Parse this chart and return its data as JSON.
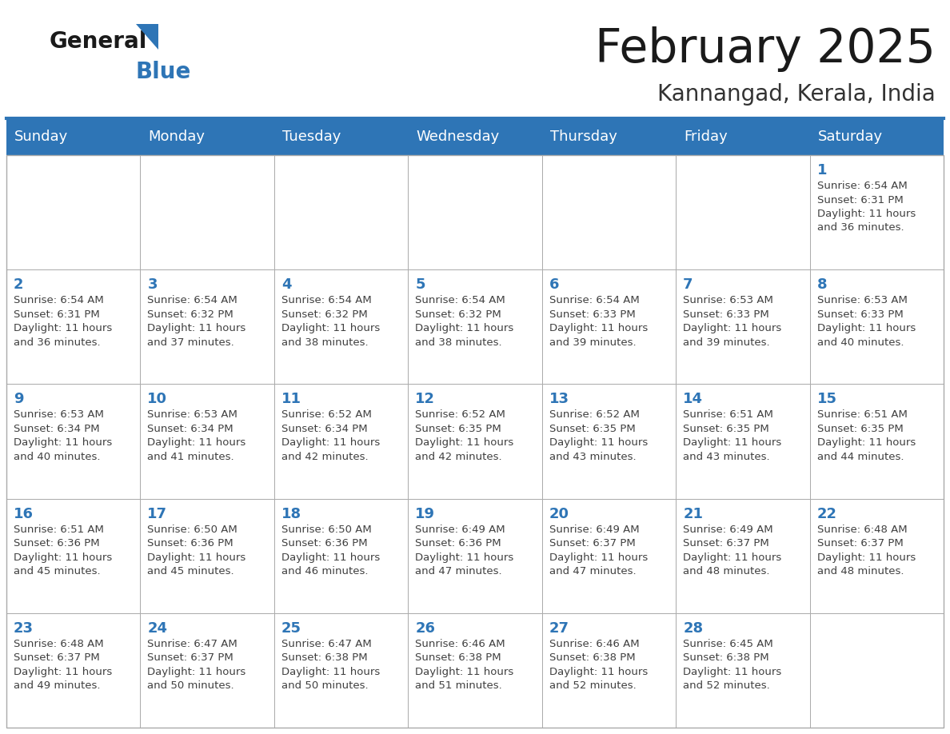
{
  "title": "February 2025",
  "subtitle": "Kannangad, Kerala, India",
  "header_color": "#2E75B6",
  "header_text_color": "#FFFFFF",
  "days_of_week": [
    "Sunday",
    "Monday",
    "Tuesday",
    "Wednesday",
    "Thursday",
    "Friday",
    "Saturday"
  ],
  "bg_color": "#FFFFFF",
  "cell_border_color": "#AAAAAA",
  "day_num_color": "#2E75B6",
  "info_text_color": "#404040",
  "logo_color_general": "#1a1a1a",
  "logo_color_blue": "#2E75B6",
  "calendar_data": [
    [
      null,
      null,
      null,
      null,
      null,
      null,
      {
        "day": 1,
        "sunrise": "6:54 AM",
        "sunset": "6:31 PM",
        "daylight_h": "11 hours",
        "daylight_m": "and 36 minutes."
      }
    ],
    [
      {
        "day": 2,
        "sunrise": "6:54 AM",
        "sunset": "6:31 PM",
        "daylight_h": "11 hours",
        "daylight_m": "and 36 minutes."
      },
      {
        "day": 3,
        "sunrise": "6:54 AM",
        "sunset": "6:32 PM",
        "daylight_h": "11 hours",
        "daylight_m": "and 37 minutes."
      },
      {
        "day": 4,
        "sunrise": "6:54 AM",
        "sunset": "6:32 PM",
        "daylight_h": "11 hours",
        "daylight_m": "and 38 minutes."
      },
      {
        "day": 5,
        "sunrise": "6:54 AM",
        "sunset": "6:32 PM",
        "daylight_h": "11 hours",
        "daylight_m": "and 38 minutes."
      },
      {
        "day": 6,
        "sunrise": "6:54 AM",
        "sunset": "6:33 PM",
        "daylight_h": "11 hours",
        "daylight_m": "and 39 minutes."
      },
      {
        "day": 7,
        "sunrise": "6:53 AM",
        "sunset": "6:33 PM",
        "daylight_h": "11 hours",
        "daylight_m": "and 39 minutes."
      },
      {
        "day": 8,
        "sunrise": "6:53 AM",
        "sunset": "6:33 PM",
        "daylight_h": "11 hours",
        "daylight_m": "and 40 minutes."
      }
    ],
    [
      {
        "day": 9,
        "sunrise": "6:53 AM",
        "sunset": "6:34 PM",
        "daylight_h": "11 hours",
        "daylight_m": "and 40 minutes."
      },
      {
        "day": 10,
        "sunrise": "6:53 AM",
        "sunset": "6:34 PM",
        "daylight_h": "11 hours",
        "daylight_m": "and 41 minutes."
      },
      {
        "day": 11,
        "sunrise": "6:52 AM",
        "sunset": "6:34 PM",
        "daylight_h": "11 hours",
        "daylight_m": "and 42 minutes."
      },
      {
        "day": 12,
        "sunrise": "6:52 AM",
        "sunset": "6:35 PM",
        "daylight_h": "11 hours",
        "daylight_m": "and 42 minutes."
      },
      {
        "day": 13,
        "sunrise": "6:52 AM",
        "sunset": "6:35 PM",
        "daylight_h": "11 hours",
        "daylight_m": "and 43 minutes."
      },
      {
        "day": 14,
        "sunrise": "6:51 AM",
        "sunset": "6:35 PM",
        "daylight_h": "11 hours",
        "daylight_m": "and 43 minutes."
      },
      {
        "day": 15,
        "sunrise": "6:51 AM",
        "sunset": "6:35 PM",
        "daylight_h": "11 hours",
        "daylight_m": "and 44 minutes."
      }
    ],
    [
      {
        "day": 16,
        "sunrise": "6:51 AM",
        "sunset": "6:36 PM",
        "daylight_h": "11 hours",
        "daylight_m": "and 45 minutes."
      },
      {
        "day": 17,
        "sunrise": "6:50 AM",
        "sunset": "6:36 PM",
        "daylight_h": "11 hours",
        "daylight_m": "and 45 minutes."
      },
      {
        "day": 18,
        "sunrise": "6:50 AM",
        "sunset": "6:36 PM",
        "daylight_h": "11 hours",
        "daylight_m": "and 46 minutes."
      },
      {
        "day": 19,
        "sunrise": "6:49 AM",
        "sunset": "6:36 PM",
        "daylight_h": "11 hours",
        "daylight_m": "and 47 minutes."
      },
      {
        "day": 20,
        "sunrise": "6:49 AM",
        "sunset": "6:37 PM",
        "daylight_h": "11 hours",
        "daylight_m": "and 47 minutes."
      },
      {
        "day": 21,
        "sunrise": "6:49 AM",
        "sunset": "6:37 PM",
        "daylight_h": "11 hours",
        "daylight_m": "and 48 minutes."
      },
      {
        "day": 22,
        "sunrise": "6:48 AM",
        "sunset": "6:37 PM",
        "daylight_h": "11 hours",
        "daylight_m": "and 48 minutes."
      }
    ],
    [
      {
        "day": 23,
        "sunrise": "6:48 AM",
        "sunset": "6:37 PM",
        "daylight_h": "11 hours",
        "daylight_m": "and 49 minutes."
      },
      {
        "day": 24,
        "sunrise": "6:47 AM",
        "sunset": "6:37 PM",
        "daylight_h": "11 hours",
        "daylight_m": "and 50 minutes."
      },
      {
        "day": 25,
        "sunrise": "6:47 AM",
        "sunset": "6:38 PM",
        "daylight_h": "11 hours",
        "daylight_m": "and 50 minutes."
      },
      {
        "day": 26,
        "sunrise": "6:46 AM",
        "sunset": "6:38 PM",
        "daylight_h": "11 hours",
        "daylight_m": "and 51 minutes."
      },
      {
        "day": 27,
        "sunrise": "6:46 AM",
        "sunset": "6:38 PM",
        "daylight_h": "11 hours",
        "daylight_m": "and 52 minutes."
      },
      {
        "day": 28,
        "sunrise": "6:45 AM",
        "sunset": "6:38 PM",
        "daylight_h": "11 hours",
        "daylight_m": "and 52 minutes."
      },
      null
    ]
  ]
}
